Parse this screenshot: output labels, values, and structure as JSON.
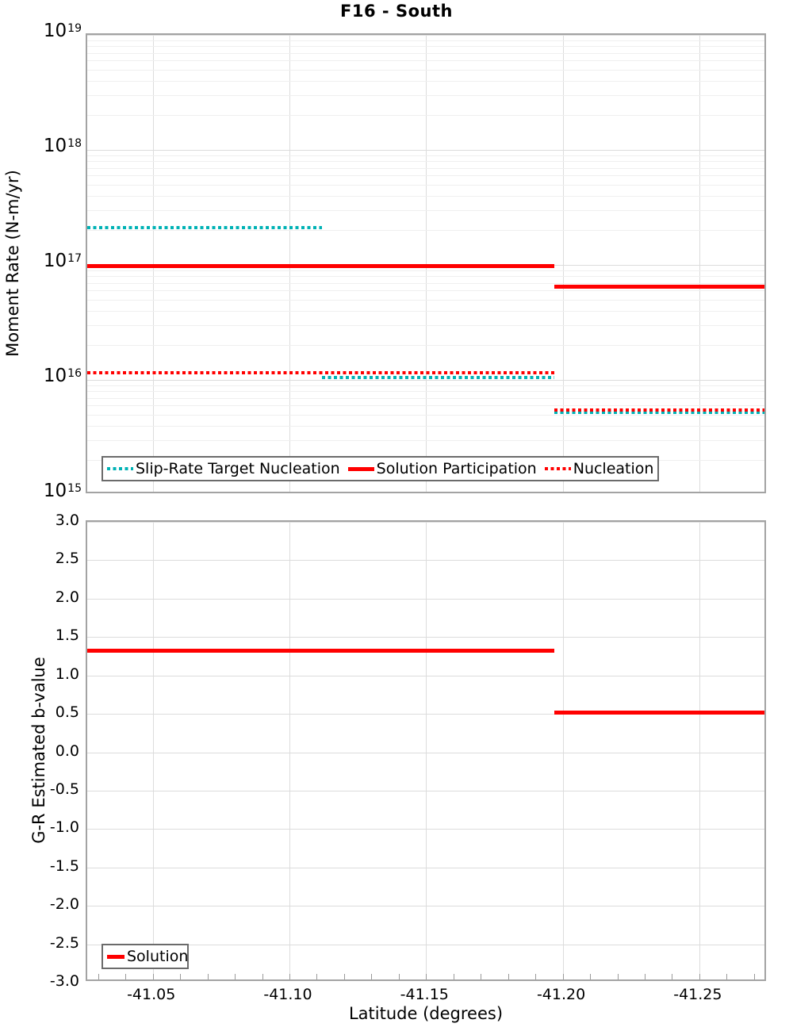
{
  "title": "F16 - South",
  "colors": {
    "red": "#ff0000",
    "cyan": "#00b2b5",
    "grid_major": "#dcdcdc",
    "grid_minor": "#efefef",
    "panel_border": "#a3a3a3",
    "legend_border": "#6b6b6b"
  },
  "x_axis": {
    "label": "Latitude (degrees)",
    "tick_labels": [
      "-41.05",
      "-41.10",
      "-41.15",
      "-41.20",
      "-41.25"
    ],
    "range_left": -41.026,
    "range_right": -41.275
  },
  "top_panel": {
    "ylabel": "Moment Rate (N-m/yr)",
    "y_tick_exponents": [
      19,
      18,
      17,
      16,
      15
    ],
    "legend": [
      {
        "label": "Slip-Rate Target Nucleation",
        "color": "cyan",
        "style": "dotted"
      },
      {
        "label": "Solution Participation",
        "color": "red",
        "style": "solid"
      },
      {
        "label": "Nucleation",
        "color": "red",
        "style": "dotted"
      }
    ]
  },
  "bottom_panel": {
    "ylabel": "G-R Estimated b-value",
    "y_tick_labels": [
      "3.0",
      "2.5",
      "2.0",
      "1.5",
      "1.0",
      "0.5",
      "0.0",
      "-0.5",
      "-1.0",
      "-1.5",
      "-2.0",
      "-2.5",
      "-3.0"
    ],
    "legend": [
      {
        "label": "Solution",
        "color": "red",
        "style": "solid"
      }
    ]
  },
  "chart_data": [
    {
      "type": "line",
      "subtype": "step",
      "title": "F16 - South",
      "xlabel": "Latitude (degrees)",
      "ylabel": "Moment Rate (N-m/yr)",
      "yscale": "log",
      "ylim": [
        1000000000000000.0,
        1e+19
      ],
      "xlim": [
        -41.026,
        -41.275
      ],
      "x_ticks": [
        -41.05,
        -41.1,
        -41.15,
        -41.2,
        -41.25
      ],
      "grid": true,
      "legend_position": "bottom-left-inside",
      "series": [
        {
          "name": "Slip-Rate Target Nucleation",
          "color": "cyan",
          "style": "dotted",
          "segments": [
            {
              "x0": -41.026,
              "x1": -41.112,
              "y": 2.1e+17
            },
            {
              "x0": -41.112,
              "x1": -41.197,
              "y": 1.05e+16
            },
            {
              "x0": -41.197,
              "x1": -41.275,
              "y": 5200000000000000.0
            }
          ]
        },
        {
          "name": "Solution Participation",
          "color": "red",
          "style": "solid",
          "segments": [
            {
              "x0": -41.026,
              "x1": -41.197,
              "y": 9.8e+16
            },
            {
              "x0": -41.197,
              "x1": -41.275,
              "y": 6.5e+16
            }
          ]
        },
        {
          "name": "Nucleation",
          "color": "red",
          "style": "dotted",
          "segments": [
            {
              "x0": -41.026,
              "x1": -41.197,
              "y": 1.15e+16
            },
            {
              "x0": -41.197,
              "x1": -41.275,
              "y": 5500000000000000.0
            }
          ]
        }
      ]
    },
    {
      "type": "line",
      "subtype": "step",
      "xlabel": "Latitude (degrees)",
      "ylabel": "G-R Estimated b-value",
      "ylim": [
        -3.0,
        3.0
      ],
      "xlim": [
        -41.026,
        -41.275
      ],
      "x_ticks": [
        -41.05,
        -41.1,
        -41.15,
        -41.2,
        -41.25
      ],
      "grid": true,
      "legend_position": "bottom-left-inside",
      "series": [
        {
          "name": "Solution",
          "color": "red",
          "style": "solid",
          "segments": [
            {
              "x0": -41.026,
              "x1": -41.197,
              "y": 1.32
            },
            {
              "x0": -41.197,
              "x1": -41.275,
              "y": 0.52
            }
          ]
        }
      ]
    }
  ]
}
